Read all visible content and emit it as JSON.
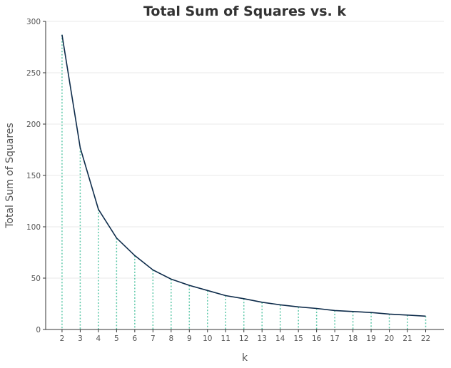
{
  "chart_data": {
    "type": "line",
    "title": "Total Sum of Squares vs. k",
    "xlabel": "k",
    "ylabel": "Total Sum of Squares",
    "x": [
      2,
      3,
      4,
      5,
      6,
      7,
      8,
      9,
      10,
      11,
      12,
      13,
      14,
      15,
      16,
      17,
      18,
      19,
      20,
      21,
      22
    ],
    "series": [
      {
        "name": "",
        "values": [
          287,
          177,
          117,
          89,
          72,
          58,
          49,
          43,
          38,
          33,
          30,
          26.5,
          24,
          22,
          20.5,
          18.5,
          17.5,
          16.5,
          15,
          14,
          13
        ]
      }
    ],
    "xticks": [
      "2",
      "3",
      "4",
      "5",
      "6",
      "7",
      "8",
      "9",
      "10",
      "11",
      "12",
      "13",
      "14",
      "15",
      "16",
      "17",
      "18",
      "19",
      "20",
      "21",
      "22"
    ],
    "yticks": [
      "0",
      "50",
      "100",
      "150",
      "200",
      "250",
      "300"
    ],
    "ylim": [
      0,
      300
    ],
    "xlim": [
      1.1,
      23
    ],
    "grid": "horizontal",
    "legend": "none",
    "colors": {
      "line": "#0d2b4a",
      "drop_lines": "#5cc8a8",
      "grid": "#e8e8e8",
      "text": "#555555",
      "title": "#333333"
    }
  }
}
